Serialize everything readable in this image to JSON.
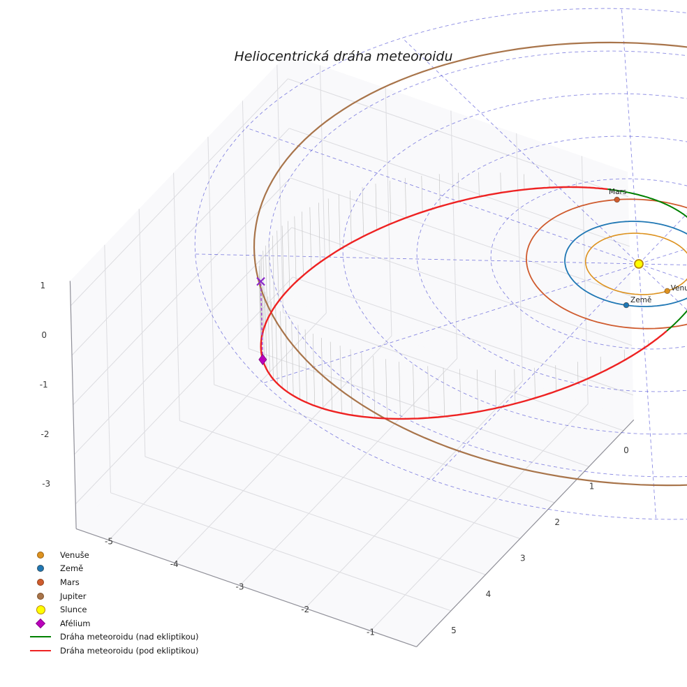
{
  "title": "Heliocentrická dráha meteoroidu",
  "colors": {
    "venus": "#dd921f",
    "earth": "#1f77b4",
    "mars": "#cf5b2e",
    "jupiter": "#a8744a",
    "sun_fill": "#ffff00",
    "sun_edge": "#b8860b",
    "aphelion": "#bb00bb",
    "aphelion_x": "#8b27c9",
    "aphelion_line": "#9b30d0",
    "traj_above": "#008000",
    "traj_below": "#ee2222",
    "polar_grid": "#2929cc",
    "stems": "#c6c6c6",
    "pane_grid": "#dcdce0",
    "spine": "#8f8f98",
    "tick_text": "#3a3a3a",
    "label_text": "#222222"
  },
  "chart_data": {
    "type": "line",
    "projection": "3d",
    "title": "Heliocentrická dráha meteoroidu",
    "axes": {
      "x_ticks": [
        -5,
        -4,
        -3,
        -2,
        -1
      ],
      "y_ticks": [
        0,
        1,
        2,
        3,
        4,
        5
      ],
      "z_ticks": [
        1,
        0,
        -1,
        -2,
        -3
      ],
      "xlim": [
        -5.5,
        -0.3
      ],
      "ylim": [
        -0.3,
        6
      ],
      "zlim": [
        -3.5,
        1.5
      ]
    },
    "sun": {
      "name": "Slunce",
      "position_au": [
        0,
        0,
        0
      ]
    },
    "planets": [
      {
        "name": "Venuše",
        "orbit_radius_au": 0.72,
        "marker_angle_deg": 30,
        "label_on_plot": true
      },
      {
        "name": "Země",
        "orbit_radius_au": 1.0,
        "marker_angle_deg": 72,
        "label_on_plot": true
      },
      {
        "name": "Mars",
        "orbit_radius_au": 1.52,
        "marker_angle_deg": 231,
        "label_on_plot": true
      },
      {
        "name": "Jupiter",
        "orbit_radius_au": 5.2,
        "marker_angle_deg": -15,
        "label_on_plot": false
      }
    ],
    "meteoroid_orbit": {
      "semi_major_axis_au": 3.2,
      "eccentricity": 0.69,
      "inclination_deg": 17,
      "arg_perihelion_deg": 95,
      "ascending_node_deg": 228,
      "segment_above_ecliptic_label": "Dráha meteoroidu (nad ekliptikou)",
      "segment_below_ecliptic_label": "Dráha meteoroidu (pod ekliptikou)"
    },
    "aphelion_label": "Afélium",
    "ecliptic_grid": {
      "circle_radii_au": [
        1,
        2,
        3,
        4,
        5,
        6
      ],
      "spoke_step_deg": 30
    }
  },
  "legend": [
    {
      "label": "Venuše",
      "marker": "dot",
      "color_key": "venus"
    },
    {
      "label": "Země",
      "marker": "dot",
      "color_key": "earth"
    },
    {
      "label": "Mars",
      "marker": "dot",
      "color_key": "mars"
    },
    {
      "label": "Jupiter",
      "marker": "dot",
      "color_key": "jupiter"
    },
    {
      "label": "Slunce",
      "marker": "dot-large",
      "color_key": "sun_fill"
    },
    {
      "label": "Afélium",
      "marker": "diamond",
      "color_key": "aphelion"
    },
    {
      "label": "Dráha meteoroidu (nad ekliptikou)",
      "marker": "line",
      "color_key": "traj_above"
    },
    {
      "label": "Dráha meteoroidu (pod ekliptikou)",
      "marker": "line",
      "color_key": "traj_below"
    }
  ]
}
